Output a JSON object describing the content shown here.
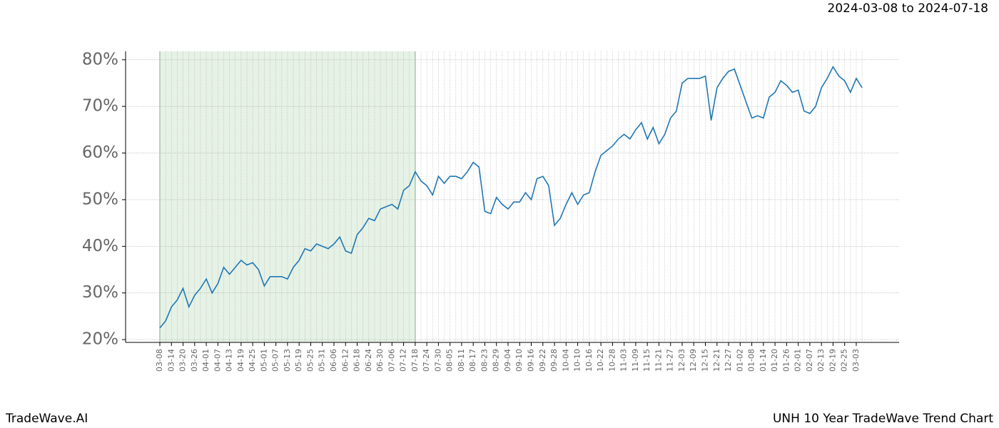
{
  "chart_data": {
    "type": "line",
    "title": "2024-03-08 to 2024-07-18",
    "footer_left": "TradeWave.AI",
    "footer_right": "UNH 10 Year TradeWave Trend Chart",
    "shaded_range": [
      "03-08",
      "07-18"
    ],
    "shade_color": "#e6f2e6",
    "grid": true,
    "categories": [
      "03-08",
      null,
      "03-14",
      null,
      "03-20",
      null,
      "03-26",
      null,
      "04-01",
      null,
      "04-07",
      null,
      "04-13",
      null,
      "04-19",
      null,
      "04-25",
      null,
      "05-01",
      null,
      "05-07",
      null,
      "05-13",
      null,
      "05-19",
      null,
      "05-25",
      null,
      "05-31",
      null,
      "06-06",
      null,
      "06-12",
      null,
      "06-18",
      null,
      "06-24",
      null,
      "06-30",
      null,
      "07-06",
      null,
      "07-12",
      null,
      "07-18",
      null,
      "07-24",
      null,
      "07-30",
      null,
      "08-05",
      null,
      "08-11",
      null,
      "08-17",
      null,
      "08-23",
      null,
      "08-29",
      null,
      "09-04",
      null,
      "09-10",
      null,
      "09-16",
      null,
      "09-22",
      null,
      "09-28",
      null,
      "10-04",
      null,
      "10-10",
      null,
      "10-16",
      null,
      "10-22",
      null,
      "10-28",
      null,
      "11-03",
      null,
      "11-09",
      null,
      "11-15",
      null,
      "11-21",
      null,
      "11-27",
      null,
      "12-03",
      null,
      "12-09",
      null,
      "12-15",
      null,
      "12-21",
      null,
      "12-27",
      null,
      "01-02",
      null,
      "01-08",
      null,
      "01-14",
      null,
      "01-20",
      null,
      "01-26",
      null,
      "02-01",
      null,
      "02-07",
      null,
      "02-13",
      null,
      "02-19",
      null,
      "02-25",
      null,
      "03-03",
      null
    ],
    "series": [
      {
        "name": "UNH",
        "color": "#1f77b4",
        "values": [
          22.5,
          24,
          27,
          28.5,
          31,
          27,
          29.5,
          31,
          33,
          30,
          32,
          35.5,
          34,
          35.5,
          37,
          36,
          36.5,
          35,
          31.5,
          33.5,
          33.5,
          33.5,
          33,
          35.5,
          37,
          39.5,
          39,
          40.5,
          40,
          39.5,
          40.5,
          42,
          39,
          38.5,
          42.5,
          44,
          46,
          45.5,
          48,
          48.5,
          49,
          48,
          52,
          53,
          56,
          54,
          53,
          51,
          55,
          53.5,
          55,
          55,
          54.5,
          56,
          58,
          57,
          47.5,
          47,
          50.5,
          49,
          48,
          49.5,
          49.5,
          51.5,
          50,
          54.5,
          55,
          53,
          44.5,
          46,
          49,
          51.5,
          49,
          51,
          51.5,
          56,
          59.5,
          60.5,
          61.5,
          63,
          64,
          63,
          65,
          66.5,
          63,
          65.5,
          62,
          64,
          67.5,
          69,
          75,
          76,
          76,
          76,
          76.5,
          67,
          74,
          76,
          77.5,
          78,
          74.5,
          71,
          67.5,
          68,
          67.5,
          72,
          73,
          75.5,
          74.5,
          73,
          73.5,
          69,
          68.5,
          70,
          74,
          76,
          78.5,
          76.5,
          75.5,
          73,
          76,
          74
        ]
      }
    ],
    "ylim": [
      19.4,
      81.8
    ],
    "yticks": [
      {
        "value": 20,
        "label": "20%"
      },
      {
        "value": 30,
        "label": "30%"
      },
      {
        "value": 40,
        "label": "40%"
      },
      {
        "value": 50,
        "label": "50%"
      },
      {
        "value": 60,
        "label": "60%"
      },
      {
        "value": 70,
        "label": "70%"
      },
      {
        "value": 80,
        "label": "80%"
      }
    ]
  }
}
